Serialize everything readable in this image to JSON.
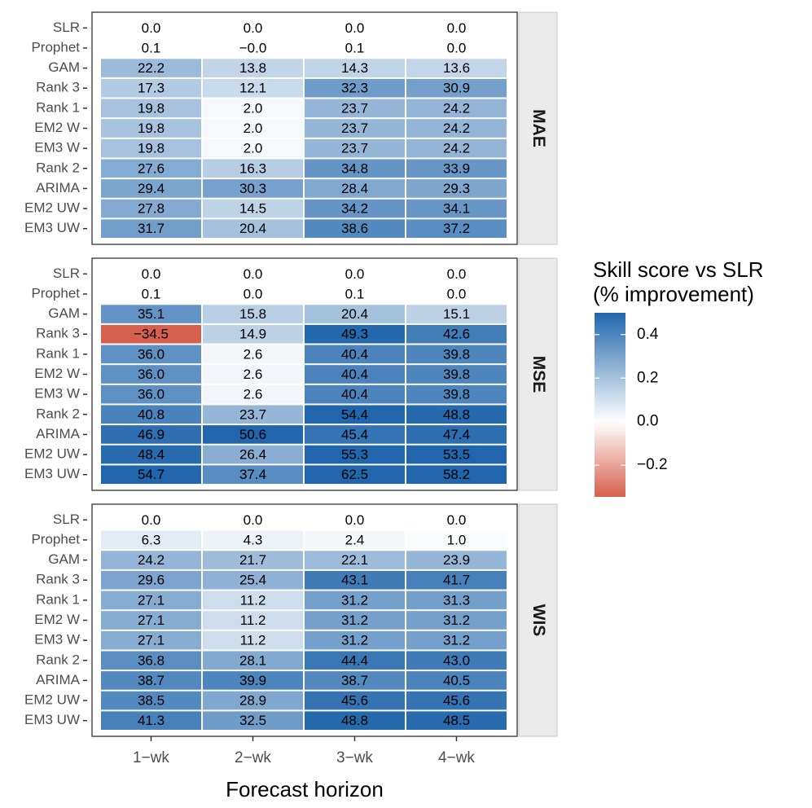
{
  "chart_data": {
    "type": "heatmap",
    "xlabel": "Forecast horizon",
    "columns": [
      "1−wk",
      "2−wk",
      "3−wk",
      "4−wk"
    ],
    "rows": [
      "SLR",
      "Prophet",
      "GAM",
      "Rank 3",
      "Rank 1",
      "EM2 W",
      "EM3 W",
      "Rank 2",
      "ARIMA",
      "EM2 UW",
      "EM3 UW"
    ],
    "panels": [
      {
        "metric": "MAE",
        "labels": [
          [
            "0.0",
            "0.0",
            "0.0",
            "0.0"
          ],
          [
            "0.1",
            "−0.0",
            "0.1",
            "0.0"
          ],
          [
            "22.2",
            "13.8",
            "14.3",
            "13.6"
          ],
          [
            "17.3",
            "12.1",
            "32.3",
            "30.9"
          ],
          [
            "19.8",
            "2.0",
            "23.7",
            "24.2"
          ],
          [
            "19.8",
            "2.0",
            "23.7",
            "24.2"
          ],
          [
            "19.8",
            "2.0",
            "23.7",
            "24.2"
          ],
          [
            "27.6",
            "16.3",
            "34.8",
            "33.9"
          ],
          [
            "29.4",
            "30.3",
            "28.4",
            "29.3"
          ],
          [
            "27.8",
            "14.5",
            "34.2",
            "34.1"
          ],
          [
            "31.7",
            "20.4",
            "38.6",
            "37.2"
          ]
        ],
        "values": [
          [
            0.0,
            0.0,
            0.0,
            0.0
          ],
          [
            0.1,
            0.0,
            0.1,
            0.0
          ],
          [
            22.2,
            13.8,
            14.3,
            13.6
          ],
          [
            17.3,
            12.1,
            32.3,
            30.9
          ],
          [
            19.8,
            2.0,
            23.7,
            24.2
          ],
          [
            19.8,
            2.0,
            23.7,
            24.2
          ],
          [
            19.8,
            2.0,
            23.7,
            24.2
          ],
          [
            27.6,
            16.3,
            34.8,
            33.9
          ],
          [
            29.4,
            30.3,
            28.4,
            29.3
          ],
          [
            27.8,
            14.5,
            34.2,
            34.1
          ],
          [
            31.7,
            20.4,
            38.6,
            37.2
          ]
        ]
      },
      {
        "metric": "MSE",
        "labels": [
          [
            "0.0",
            "0.0",
            "0.0",
            "0.0"
          ],
          [
            "0.1",
            "0.0",
            "0.1",
            "0.0"
          ],
          [
            "35.1",
            "15.8",
            "20.4",
            "15.1"
          ],
          [
            "−34.5",
            "14.9",
            "49.3",
            "42.6"
          ],
          [
            "36.0",
            "2.6",
            "40.4",
            "39.8"
          ],
          [
            "36.0",
            "2.6",
            "40.4",
            "39.8"
          ],
          [
            "36.0",
            "2.6",
            "40.4",
            "39.8"
          ],
          [
            "40.8",
            "23.7",
            "54.4",
            "48.8"
          ],
          [
            "46.9",
            "50.6",
            "45.4",
            "47.4"
          ],
          [
            "48.4",
            "26.4",
            "55.3",
            "53.5"
          ],
          [
            "54.7",
            "37.4",
            "62.5",
            "58.2"
          ]
        ],
        "values": [
          [
            0.0,
            0.0,
            0.0,
            0.0
          ],
          [
            0.1,
            0.0,
            0.1,
            0.0
          ],
          [
            35.1,
            15.8,
            20.4,
            15.1
          ],
          [
            -34.5,
            14.9,
            49.3,
            42.6
          ],
          [
            36.0,
            2.6,
            40.4,
            39.8
          ],
          [
            36.0,
            2.6,
            40.4,
            39.8
          ],
          [
            36.0,
            2.6,
            40.4,
            39.8
          ],
          [
            40.8,
            23.7,
            54.4,
            48.8
          ],
          [
            46.9,
            50.6,
            45.4,
            47.4
          ],
          [
            48.4,
            26.4,
            55.3,
            53.5
          ],
          [
            54.7,
            37.4,
            62.5,
            58.2
          ]
        ]
      },
      {
        "metric": "WIS",
        "labels": [
          [
            "0.0",
            "0.0",
            "0.0",
            "0.0"
          ],
          [
            "6.3",
            "4.3",
            "2.4",
            "1.0"
          ],
          [
            "24.2",
            "21.7",
            "22.1",
            "23.9"
          ],
          [
            "29.6",
            "25.4",
            "43.1",
            "41.7"
          ],
          [
            "27.1",
            "11.2",
            "31.2",
            "31.3"
          ],
          [
            "27.1",
            "11.2",
            "31.2",
            "31.2"
          ],
          [
            "27.1",
            "11.2",
            "31.2",
            "31.2"
          ],
          [
            "36.8",
            "28.1",
            "44.4",
            "43.0"
          ],
          [
            "38.7",
            "39.9",
            "38.7",
            "40.5"
          ],
          [
            "38.5",
            "28.9",
            "45.6",
            "45.6"
          ],
          [
            "41.3",
            "32.5",
            "48.8",
            "48.5"
          ]
        ],
        "values": [
          [
            0.0,
            0.0,
            0.0,
            0.0
          ],
          [
            6.3,
            4.3,
            2.4,
            1.0
          ],
          [
            24.2,
            21.7,
            22.1,
            23.9
          ],
          [
            29.6,
            25.4,
            43.1,
            41.7
          ],
          [
            27.1,
            11.2,
            31.2,
            31.3
          ],
          [
            27.1,
            11.2,
            31.2,
            31.2
          ],
          [
            27.1,
            11.2,
            31.2,
            31.2
          ],
          [
            36.8,
            28.1,
            44.4,
            43.0
          ],
          [
            38.7,
            39.9,
            38.7,
            40.5
          ],
          [
            38.5,
            28.9,
            45.6,
            45.6
          ],
          [
            41.3,
            32.5,
            48.8,
            48.5
          ]
        ]
      }
    ],
    "legend": {
      "title_line1": "Skill score vs SLR",
      "title_line2": "(% improvement)",
      "ticks": [
        0.4,
        0.2,
        0.0,
        -0.2
      ],
      "tick_labels": [
        "0.4",
        "0.2",
        "0.0",
        "−0.2"
      ],
      "range": [
        -0.345,
        0.5
      ],
      "placement": "right"
    },
    "colors": {
      "high": "#2166AC",
      "mid": "#FFFFFF",
      "low": "#D6604D",
      "strip_bg": "#EBEBEB",
      "strip_border": "#C8C8C8",
      "panel_border": "#333333"
    }
  }
}
